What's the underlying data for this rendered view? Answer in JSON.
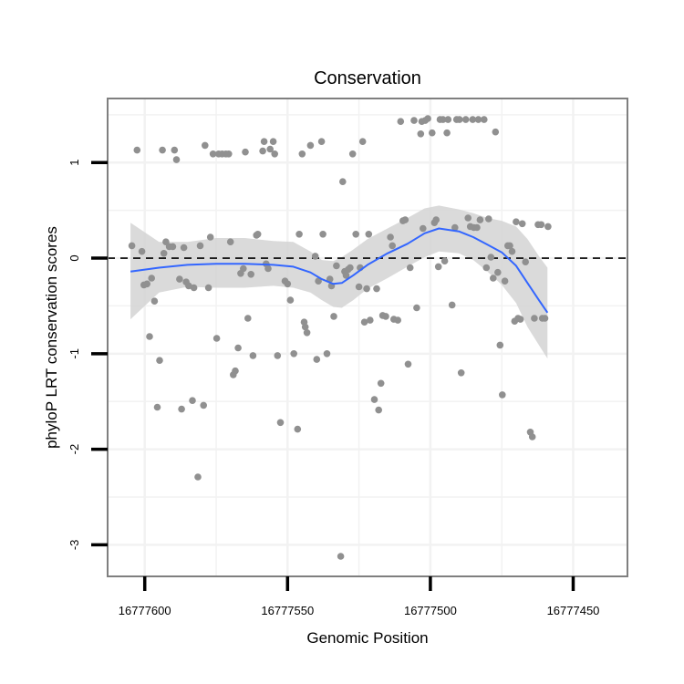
{
  "chart_data": {
    "type": "scatter",
    "title": "Conservation",
    "xlabel": "Genomic Position",
    "ylabel": "phyloP LRT conservation scores",
    "x_reversed": true,
    "xlim": [
      16777613,
      16777431
    ],
    "ylim": [
      -3.33,
      1.67
    ],
    "x_ticks": [
      16777600,
      16777550,
      16777500,
      16777450
    ],
    "y_ticks": [
      -3,
      -2,
      -1,
      0,
      1
    ],
    "x_tick_labels": [
      "16777600",
      "16777550",
      "16777500",
      "16777450"
    ],
    "y_tick_labels": [
      "-3",
      "-2",
      "-1",
      "0",
      "1"
    ],
    "reference_line": {
      "y": 0,
      "style": "dashed",
      "color": "#000000"
    },
    "grid": true,
    "colors": {
      "points": "#909090",
      "smooth": "#3366ff",
      "ribbon": "#d4d4d4",
      "panel_border": "#7f7f7f",
      "grid": "#f2f2f2"
    },
    "points": [
      [
        16777604.5,
        0.13
      ],
      [
        16777602.7,
        1.13
      ],
      [
        16777601.0,
        0.07
      ],
      [
        16777600.3,
        -0.28
      ],
      [
        16777599.2,
        -0.27
      ],
      [
        16777598.3,
        -0.82
      ],
      [
        16777597.6,
        -0.21
      ],
      [
        16777596.6,
        -0.45
      ],
      [
        16777595.6,
        -1.56
      ],
      [
        16777594.8,
        -1.07
      ],
      [
        16777593.8,
        1.13
      ],
      [
        16777593.3,
        0.05
      ],
      [
        16777592.6,
        0.17
      ],
      [
        16777591.4,
        0.12
      ],
      [
        16777590.2,
        0.12
      ],
      [
        16777589.6,
        1.13
      ],
      [
        16777588.9,
        1.03
      ],
      [
        16777587.8,
        -0.22
      ],
      [
        16777587.1,
        -1.58
      ],
      [
        16777586.3,
        0.11
      ],
      [
        16777585.5,
        -0.25
      ],
      [
        16777584.6,
        -0.29
      ],
      [
        16777583.3,
        -1.49
      ],
      [
        16777582.8,
        -0.31
      ],
      [
        16777581.4,
        -2.29
      ],
      [
        16777580.6,
        0.13
      ],
      [
        16777579.4,
        -1.54
      ],
      [
        16777578.9,
        1.18
      ],
      [
        16777577.7,
        -0.31
      ],
      [
        16777577.0,
        0.22
      ],
      [
        16777576.1,
        1.09
      ],
      [
        16777574.8,
        -0.84
      ],
      [
        16777574.1,
        1.09
      ],
      [
        16777572.9,
        1.09
      ],
      [
        16777571.6,
        1.09
      ],
      [
        16777570.6,
        1.09
      ],
      [
        16777570.0,
        0.17
      ],
      [
        16777569.0,
        -1.22
      ],
      [
        16777568.3,
        -1.18
      ],
      [
        16777567.3,
        -0.94
      ],
      [
        16777566.4,
        -0.16
      ],
      [
        16777565.5,
        -0.11
      ],
      [
        16777564.8,
        1.11
      ],
      [
        16777563.9,
        -0.63
      ],
      [
        16777562.8,
        -0.17
      ],
      [
        16777562.1,
        -1.02
      ],
      [
        16777560.9,
        0.24
      ],
      [
        16777560.4,
        0.25
      ],
      [
        16777558.7,
        1.12
      ],
      [
        16777558.2,
        1.22
      ],
      [
        16777557.5,
        -0.06
      ],
      [
        16777556.8,
        -0.11
      ],
      [
        16777556.1,
        1.14
      ],
      [
        16777555.0,
        1.22
      ],
      [
        16777554.5,
        1.09
      ],
      [
        16777553.5,
        -1.02
      ],
      [
        16777552.5,
        -1.72
      ],
      [
        16777550.9,
        -0.24
      ],
      [
        16777550.0,
        -0.27
      ],
      [
        16777549.0,
        -0.44
      ],
      [
        16777547.8,
        -1.0
      ],
      [
        16777546.5,
        -1.79
      ],
      [
        16777545.9,
        0.25
      ],
      [
        16777544.9,
        1.09
      ],
      [
        16777544.2,
        -0.67
      ],
      [
        16777543.8,
        -0.72
      ],
      [
        16777543.2,
        -0.78
      ],
      [
        16777542.0,
        1.18
      ],
      [
        16777540.3,
        0.02
      ],
      [
        16777539.8,
        -1.06
      ],
      [
        16777539.2,
        -0.24
      ],
      [
        16777538.1,
        1.22
      ],
      [
        16777537.6,
        0.25
      ],
      [
        16777536.2,
        -1.0
      ],
      [
        16777535.2,
        -0.22
      ],
      [
        16777534.6,
        -0.29
      ],
      [
        16777533.8,
        -0.61
      ],
      [
        16777532.9,
        -0.08
      ],
      [
        16777531.4,
        -3.12
      ],
      [
        16777530.7,
        0.8
      ],
      [
        16777530.0,
        -0.14
      ],
      [
        16777529.5,
        -0.18
      ],
      [
        16777528.8,
        -0.12
      ],
      [
        16777528.1,
        -0.1
      ],
      [
        16777527.2,
        1.09
      ],
      [
        16777526.1,
        0.25
      ],
      [
        16777525.0,
        -0.3
      ],
      [
        16777524.6,
        -0.1
      ],
      [
        16777523.7,
        1.22
      ],
      [
        16777523.1,
        -0.67
      ],
      [
        16777522.3,
        -0.32
      ],
      [
        16777521.6,
        0.25
      ],
      [
        16777521.1,
        -0.65
      ],
      [
        16777519.6,
        -1.48
      ],
      [
        16777518.8,
        -0.32
      ],
      [
        16777518.1,
        -1.59
      ],
      [
        16777517.3,
        -1.31
      ],
      [
        16777516.7,
        -0.6
      ],
      [
        16777515.6,
        -0.61
      ],
      [
        16777514.0,
        0.22
      ],
      [
        16777513.3,
        0.13
      ],
      [
        16777512.8,
        -0.64
      ],
      [
        16777511.4,
        -0.65
      ],
      [
        16777510.4,
        1.43
      ],
      [
        16777509.6,
        0.39
      ],
      [
        16777508.8,
        0.4
      ],
      [
        16777507.8,
        -1.11
      ],
      [
        16777507.1,
        -0.1
      ],
      [
        16777505.7,
        1.44
      ],
      [
        16777504.8,
        -0.52
      ],
      [
        16777503.4,
        1.3
      ],
      [
        16777503.0,
        1.43
      ],
      [
        16777502.6,
        0.31
      ],
      [
        16777501.8,
        1.44
      ],
      [
        16777500.9,
        1.46
      ],
      [
        16777499.4,
        1.31
      ],
      [
        16777498.6,
        0.37
      ],
      [
        16777498.0,
        0.4
      ],
      [
        16777497.2,
        -0.09
      ],
      [
        16777496.6,
        1.45
      ],
      [
        16777495.6,
        1.45
      ],
      [
        16777495.0,
        -0.03
      ],
      [
        16777494.2,
        1.31
      ],
      [
        16777493.8,
        1.45
      ],
      [
        16777492.4,
        -0.49
      ],
      [
        16777491.4,
        0.32
      ],
      [
        16777490.8,
        1.45
      ],
      [
        16777489.8,
        1.45
      ],
      [
        16777489.2,
        -1.2
      ],
      [
        16777487.6,
        1.45
      ],
      [
        16777486.8,
        0.42
      ],
      [
        16777486.0,
        0.33
      ],
      [
        16777485.2,
        1.45
      ],
      [
        16777484.8,
        0.32
      ],
      [
        16777483.7,
        0.32
      ],
      [
        16777483.2,
        1.45
      ],
      [
        16777482.6,
        0.4
      ],
      [
        16777481.2,
        1.45
      ],
      [
        16777480.4,
        -0.1
      ],
      [
        16777479.6,
        0.41
      ],
      [
        16777478.8,
        0.01
      ],
      [
        16777478.0,
        -0.21
      ],
      [
        16777477.2,
        1.32
      ],
      [
        16777476.4,
        -0.15
      ],
      [
        16777475.6,
        -0.91
      ],
      [
        16777474.8,
        -1.43
      ],
      [
        16777473.9,
        -0.24
      ],
      [
        16777472.9,
        0.13
      ],
      [
        16777472.2,
        0.13
      ],
      [
        16777471.4,
        0.07
      ],
      [
        16777470.5,
        -0.66
      ],
      [
        16777470.0,
        0.38
      ],
      [
        16777469.3,
        -0.63
      ],
      [
        16777468.5,
        -0.64
      ],
      [
        16777467.8,
        0.36
      ],
      [
        16777466.7,
        -0.04
      ],
      [
        16777465.0,
        -1.82
      ],
      [
        16777464.3,
        -1.87
      ],
      [
        16777463.6,
        -0.63
      ],
      [
        16777462.3,
        0.35
      ],
      [
        16777461.2,
        0.35
      ],
      [
        16777460.8,
        -0.63
      ],
      [
        16777459.9,
        -0.63
      ],
      [
        16777458.8,
        0.33
      ]
    ],
    "smooth": [
      [
        16777605,
        -0.14
      ],
      [
        16777595,
        -0.1
      ],
      [
        16777585,
        -0.07
      ],
      [
        16777575,
        -0.06
      ],
      [
        16777565,
        -0.06
      ],
      [
        16777555,
        -0.07
      ],
      [
        16777548,
        -0.09
      ],
      [
        16777542,
        -0.15
      ],
      [
        16777538,
        -0.22
      ],
      [
        16777534,
        -0.27
      ],
      [
        16777531,
        -0.26
      ],
      [
        16777527,
        -0.18
      ],
      [
        16777522,
        -0.07
      ],
      [
        16777515,
        0.05
      ],
      [
        16777508,
        0.15
      ],
      [
        16777502,
        0.26
      ],
      [
        16777497,
        0.31
      ],
      [
        16777490,
        0.28
      ],
      [
        16777485,
        0.22
      ],
      [
        16777480,
        0.14
      ],
      [
        16777475,
        0.06
      ],
      [
        16777470,
        -0.08
      ],
      [
        16777466,
        -0.26
      ],
      [
        16777462,
        -0.44
      ],
      [
        16777459,
        -0.57
      ]
    ],
    "ribbon_upper": [
      [
        16777605,
        0.37
      ],
      [
        16777595,
        0.17
      ],
      [
        16777585,
        0.17
      ],
      [
        16777575,
        0.21
      ],
      [
        16777565,
        0.21
      ],
      [
        16777555,
        0.18
      ],
      [
        16777548,
        0.17
      ],
      [
        16777542,
        0.07
      ],
      [
        16777538,
        -0.02
      ],
      [
        16777534,
        -0.03
      ],
      [
        16777531,
        0.01
      ],
      [
        16777527,
        0.09
      ],
      [
        16777522,
        0.2
      ],
      [
        16777515,
        0.31
      ],
      [
        16777508,
        0.42
      ],
      [
        16777502,
        0.52
      ],
      [
        16777497,
        0.55
      ],
      [
        16777490,
        0.51
      ],
      [
        16777485,
        0.47
      ],
      [
        16777480,
        0.42
      ],
      [
        16777475,
        0.39
      ],
      [
        16777470,
        0.33
      ],
      [
        16777466,
        0.2
      ],
      [
        16777462,
        0.02
      ],
      [
        16777459,
        -0.1
      ]
    ],
    "ribbon_lower": [
      [
        16777605,
        -0.64
      ],
      [
        16777595,
        -0.36
      ],
      [
        16777585,
        -0.3
      ],
      [
        16777575,
        -0.31
      ],
      [
        16777565,
        -0.31
      ],
      [
        16777555,
        -0.29
      ],
      [
        16777548,
        -0.31
      ],
      [
        16777542,
        -0.36
      ],
      [
        16777538,
        -0.44
      ],
      [
        16777534,
        -0.51
      ],
      [
        16777531,
        -0.52
      ],
      [
        16777527,
        -0.44
      ],
      [
        16777522,
        -0.32
      ],
      [
        16777515,
        -0.21
      ],
      [
        16777508,
        -0.09
      ],
      [
        16777502,
        0.01
      ],
      [
        16777497,
        0.07
      ],
      [
        16777490,
        0.05
      ],
      [
        16777485,
        -0.02
      ],
      [
        16777480,
        -0.14
      ],
      [
        16777475,
        -0.28
      ],
      [
        16777470,
        -0.47
      ],
      [
        16777466,
        -0.72
      ],
      [
        16777462,
        -0.91
      ],
      [
        16777459,
        -1.05
      ]
    ]
  }
}
